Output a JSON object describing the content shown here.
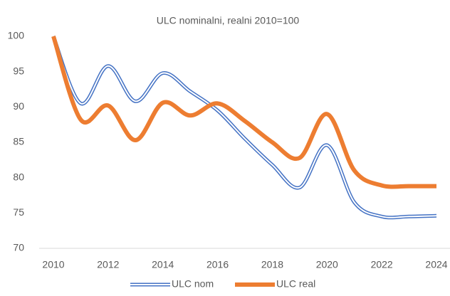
{
  "chart_data": {
    "type": "line",
    "title": "ULC nominalni, realni 2010=100",
    "x": [
      2010,
      2011,
      2012,
      2013,
      2014,
      2015,
      2016,
      2017,
      2018,
      2019,
      2020,
      2021,
      2022,
      2023,
      2024
    ],
    "series": [
      {
        "name": "ULC nom",
        "color": "#4472c4",
        "values": [
          100,
          90.5,
          95.8,
          90.8,
          94.8,
          92.2,
          89.5,
          85.5,
          81.8,
          78.6,
          84.6,
          76.5,
          74.5,
          74.5,
          74.6
        ]
      },
      {
        "name": "ULC real",
        "color": "#ed7d31",
        "values": [
          100,
          88.2,
          90.2,
          85.3,
          90.6,
          88.8,
          90.5,
          88,
          85,
          82.8,
          89,
          81,
          78.9,
          78.8,
          78.8
        ]
      }
    ],
    "xlim": [
      2010,
      2024
    ],
    "xticks": [
      2010,
      2012,
      2014,
      2016,
      2018,
      2020,
      2022,
      2024
    ],
    "ylim": [
      70,
      100
    ],
    "yticks": [
      70,
      75,
      80,
      85,
      90,
      95,
      100
    ],
    "grid": false,
    "legend": "bottom"
  }
}
